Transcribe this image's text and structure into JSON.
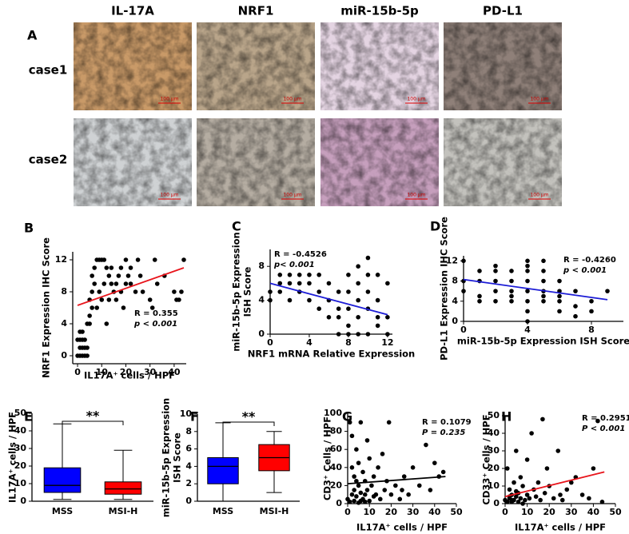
{
  "panel_a": {
    "label": "A",
    "columns": [
      "IL-17A",
      "NRF1",
      "miR-15b-5p",
      "PD-L1"
    ],
    "rows": [
      "case1",
      "case2"
    ],
    "scale_bar": "100 μm"
  },
  "chart_data": [
    {
      "panel": "B",
      "type": "scatter",
      "x_label": "IL17A⁺ cells / HPF",
      "y_label": [
        "NRF1 Expression IHC Score"
      ],
      "xlim": [
        -2,
        45
      ],
      "ylim": [
        -1,
        13
      ],
      "xticks": [
        0,
        10,
        20,
        30,
        40
      ],
      "yticks": [
        0,
        4,
        8,
        12
      ],
      "color": "#000000",
      "x": [
        0,
        1,
        2,
        3,
        4,
        1,
        2,
        3,
        4,
        0,
        1,
        2,
        3,
        1,
        2,
        4,
        5,
        5,
        6,
        5,
        6,
        7,
        6,
        7,
        8,
        9,
        10,
        11,
        12,
        13,
        14,
        15,
        16,
        17,
        18,
        20,
        22,
        24,
        25,
        26,
        27,
        30,
        31,
        32,
        33,
        36,
        40,
        41,
        42,
        43,
        44,
        12,
        10,
        8,
        9,
        11,
        13,
        14,
        18,
        20,
        21,
        22,
        19,
        16
      ],
      "values": [
        0,
        0,
        0,
        0,
        0,
        1,
        1,
        1,
        1,
        2,
        2,
        2,
        2,
        3,
        3,
        4,
        4,
        5,
        6,
        7,
        8,
        9,
        10,
        11,
        12,
        12,
        12,
        12,
        11,
        10,
        9,
        8,
        9,
        10,
        11,
        12,
        9,
        8,
        12,
        10,
        8,
        7,
        6,
        12,
        9,
        10,
        8,
        7,
        7,
        8,
        12,
        4,
        7,
        6,
        8,
        9,
        7,
        11,
        8,
        9,
        10,
        11,
        6,
        7
      ],
      "fit": {
        "x": [
          0,
          44
        ],
        "values": [
          6.3,
          11
        ],
        "color": "#e8141b"
      },
      "annotation": [
        "R = 0.355",
        "p < 0.001"
      ]
    },
    {
      "panel": "C",
      "type": "scatter",
      "x_label": "NRF1 mRNA Relative Expression",
      "y_label": [
        "miR-15b-5p Expression",
        "ISH Score"
      ],
      "xlim": [
        0,
        12.5
      ],
      "ylim": [
        0,
        10
      ],
      "xticks": [
        0,
        4,
        8,
        12
      ],
      "yticks": [
        0,
        4,
        8
      ],
      "color": "#000000",
      "x": [
        0,
        0,
        1,
        1,
        2,
        2,
        3,
        3,
        4,
        4,
        4,
        5,
        5,
        6,
        6,
        6,
        7,
        7,
        7,
        8,
        8,
        8,
        8,
        9,
        9,
        9,
        9,
        10,
        10,
        10,
        10,
        11,
        11,
        11,
        12,
        12,
        1,
        2,
        3,
        5,
        7,
        8,
        9,
        10,
        11,
        12
      ],
      "values": [
        5,
        4,
        6,
        7,
        6,
        7,
        7,
        5,
        7,
        6,
        4,
        5,
        3,
        6,
        4,
        2,
        5,
        2,
        0,
        7,
        3,
        1,
        0,
        8,
        6,
        4,
        2,
        9,
        5,
        3,
        0,
        7,
        4,
        1,
        6,
        2,
        5,
        4,
        6,
        7,
        3,
        5,
        0,
        7,
        2,
        0
      ],
      "fit": {
        "x": [
          0,
          12
        ],
        "values": [
          6,
          2.3
        ],
        "color": "#1c1cd6"
      },
      "annotation": [
        "R = -0.4526",
        "p< 0.001"
      ]
    },
    {
      "panel": "D",
      "type": "scatter",
      "x_label": "miR-15b-5p Expression ISH Score",
      "y_label": [
        "PD-L1 Expression IHC Score"
      ],
      "xlim": [
        0,
        10
      ],
      "ylim": [
        0,
        13
      ],
      "xticks": [
        0,
        4,
        8
      ],
      "yticks": [
        0,
        4,
        8,
        12
      ],
      "color": "#000000",
      "x": [
        0,
        0,
        0,
        1,
        1,
        1,
        2,
        2,
        2,
        2,
        3,
        3,
        3,
        3,
        4,
        4,
        4,
        4,
        4,
        4,
        4,
        5,
        5,
        5,
        5,
        5,
        6,
        6,
        6,
        6,
        7,
        7,
        7,
        8,
        8,
        9,
        1,
        2,
        3,
        5,
        4,
        6
      ],
      "values": [
        12,
        8,
        6,
        10,
        8,
        5,
        11,
        8,
        6,
        4,
        10,
        8,
        6,
        4,
        12,
        11,
        8,
        6,
        4,
        2,
        0,
        12,
        10,
        8,
        6,
        4,
        8,
        6,
        4,
        2,
        6,
        3,
        1,
        4,
        2,
        6,
        4,
        10,
        5,
        5,
        10,
        5
      ],
      "fit": {
        "x": [
          0,
          9
        ],
        "values": [
          8.3,
          4.3
        ],
        "color": "#1c1cd6"
      },
      "annotation": [
        "R = -0.4260",
        "p < 0.001"
      ]
    },
    {
      "panel": "E",
      "type": "box",
      "y_label": [
        "IL17A⁺ cells / HPF"
      ],
      "categories": [
        "MSS",
        "MSI-H"
      ],
      "ylim": [
        0,
        50
      ],
      "yticks": [
        0,
        10,
        20,
        30,
        40,
        50
      ],
      "boxes": [
        {
          "min": 1,
          "q1": 5,
          "median": 9,
          "q3": 19,
          "max": 44,
          "color": "#0000ff"
        },
        {
          "min": 1,
          "q1": 4,
          "median": 7,
          "q3": 11,
          "max": 29,
          "color": "#ff0000"
        }
      ],
      "significance": "**"
    },
    {
      "panel": "F",
      "type": "box",
      "y_label": [
        "miR-15b-5p Expression",
        "ISH Score"
      ],
      "categories": [
        "MSS",
        "MSI-H"
      ],
      "ylim": [
        0,
        10
      ],
      "yticks": [
        0,
        2,
        4,
        6,
        8,
        10
      ],
      "boxes": [
        {
          "min": 0,
          "q1": 2,
          "median": 4,
          "q3": 5,
          "max": 9,
          "color": "#0000ff"
        },
        {
          "min": 1,
          "q1": 3.5,
          "median": 5,
          "q3": 6.5,
          "max": 8,
          "color": "#ff0000"
        }
      ],
      "significance": "**"
    },
    {
      "panel": "G",
      "type": "scatter",
      "x_label": "IL17A⁺ cells / HPF",
      "y_label": [
        "CD3⁺ Cells / HPF"
      ],
      "xlim": [
        0,
        50
      ],
      "ylim": [
        0,
        100
      ],
      "xticks": [
        0,
        10,
        20,
        30,
        40,
        50
      ],
      "yticks": [
        0,
        20,
        40,
        60,
        80,
        100
      ],
      "color": "#000000",
      "x": [
        0,
        1,
        1,
        2,
        2,
        3,
        3,
        4,
        4,
        5,
        5,
        5,
        6,
        6,
        7,
        7,
        8,
        8,
        9,
        9,
        10,
        10,
        11,
        12,
        12,
        13,
        14,
        15,
        16,
        17,
        18,
        19,
        20,
        22,
        24,
        25,
        26,
        28,
        30,
        33,
        36,
        38,
        40,
        42,
        44,
        2,
        3,
        4,
        6,
        8
      ],
      "values": [
        5,
        2,
        90,
        10,
        40,
        3,
        30,
        8,
        60,
        1,
        20,
        45,
        12,
        90,
        5,
        35,
        2,
        25,
        15,
        70,
        3,
        50,
        20,
        8,
        30,
        10,
        40,
        5,
        55,
        15,
        25,
        90,
        10,
        20,
        5,
        15,
        30,
        10,
        40,
        20,
        65,
        15,
        45,
        30,
        35,
        75,
        15,
        25,
        3,
        10
      ],
      "fit": {
        "x": [
          0,
          45
        ],
        "values": [
          22,
          30
        ],
        "color": "#000000"
      },
      "annotation": [
        "R = 0.1079",
        "P = 0.235"
      ]
    },
    {
      "panel": "H",
      "type": "scatter",
      "x_label": "IL17A⁺ cells / HPF",
      "y_label": [
        "CD33⁺ Cells / HPF"
      ],
      "xlim": [
        0,
        50
      ],
      "ylim": [
        0,
        50
      ],
      "xticks": [
        0,
        10,
        20,
        30,
        40,
        50
      ],
      "yticks": [
        0,
        10,
        20,
        30,
        40,
        50
      ],
      "color": "#000000",
      "x": [
        0,
        1,
        1,
        2,
        2,
        3,
        3,
        4,
        4,
        5,
        5,
        6,
        6,
        7,
        7,
        8,
        9,
        10,
        10,
        11,
        12,
        13,
        14,
        15,
        16,
        17,
        18,
        19,
        20,
        22,
        24,
        25,
        26,
        28,
        30,
        32,
        35,
        38,
        40,
        42,
        44,
        2,
        3,
        5,
        8
      ],
      "values": [
        2,
        1,
        20,
        3,
        8,
        1,
        5,
        2,
        12,
        4,
        30,
        1,
        6,
        3,
        15,
        10,
        2,
        5,
        25,
        3,
        40,
        8,
        4,
        12,
        2,
        48,
        6,
        20,
        10,
        3,
        30,
        5,
        2,
        8,
        12,
        15,
        5,
        3,
        20,
        47,
        1,
        4,
        2,
        7,
        0
      ],
      "fit": {
        "x": [
          0,
          45
        ],
        "values": [
          4,
          18
        ],
        "color": "#e8141b"
      },
      "annotation": [
        "R = 0.2951",
        "P < 0.001"
      ]
    }
  ]
}
